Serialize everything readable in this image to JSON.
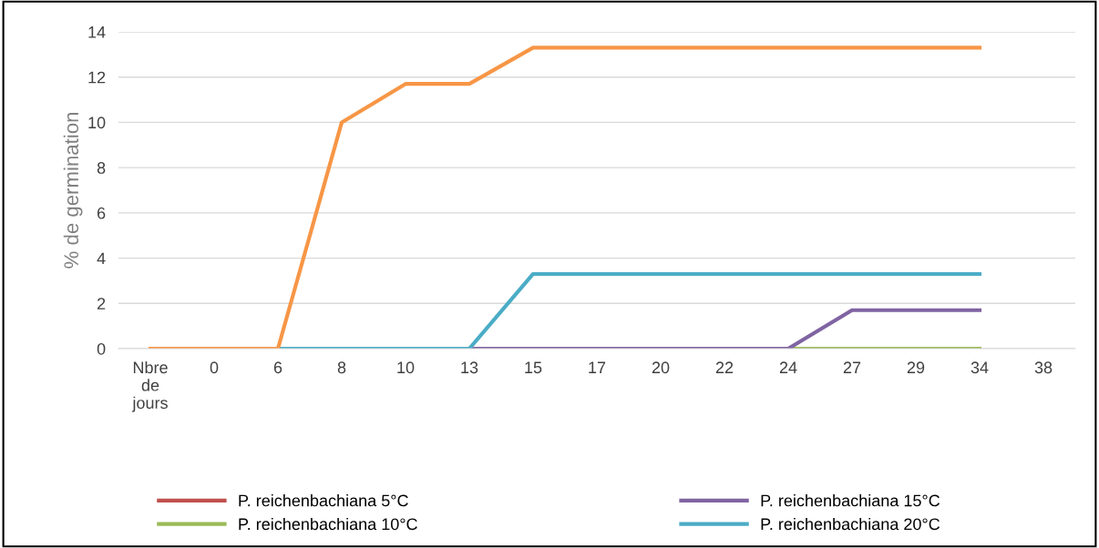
{
  "chart_data": {
    "type": "line",
    "ylabel": "% de germination",
    "categories": [
      "Nbre de jours",
      "0",
      "6",
      "8",
      "10",
      "13",
      "15",
      "17",
      "20",
      "22",
      "24",
      "27",
      "29",
      "34",
      "38"
    ],
    "ylim": [
      0,
      14
    ],
    "yticks": [
      0,
      2,
      4,
      6,
      8,
      10,
      12,
      14
    ],
    "grid": "y",
    "legend": "bottom",
    "marker": "none",
    "line_style": "solid",
    "series": [
      {
        "name": "P. reichenbachiana 5°C",
        "color": "#c0504d",
        "values": [
          null,
          null,
          null,
          null,
          null,
          null,
          null,
          null,
          null,
          null,
          null,
          null,
          null,
          null,
          null
        ]
      },
      {
        "name": "P. reichenbachiana 10°C",
        "color": "#9bbb59",
        "values": [
          null,
          null,
          null,
          null,
          null,
          null,
          null,
          null,
          null,
          null,
          0,
          0,
          0,
          0,
          null
        ]
      },
      {
        "name": "P. reichenbachiana 15°C",
        "color": "#8064a2",
        "values": [
          null,
          null,
          null,
          null,
          null,
          0,
          0,
          0,
          0,
          0,
          0,
          1.7,
          1.7,
          1.7,
          null
        ]
      },
      {
        "name": "P. reichenbachiana 20°C",
        "color": "#4bacc6",
        "values": [
          null,
          null,
          0,
          0,
          0,
          0,
          3.3,
          3.3,
          3.3,
          3.3,
          3.3,
          3.3,
          3.3,
          3.3,
          null
        ]
      },
      {
        "color": "#f79646",
        "values": [
          0,
          0,
          0,
          10,
          11.7,
          11.7,
          13.3,
          13.3,
          13.3,
          13.3,
          13.3,
          13.3,
          13.3,
          13.3,
          null
        ]
      }
    ]
  }
}
